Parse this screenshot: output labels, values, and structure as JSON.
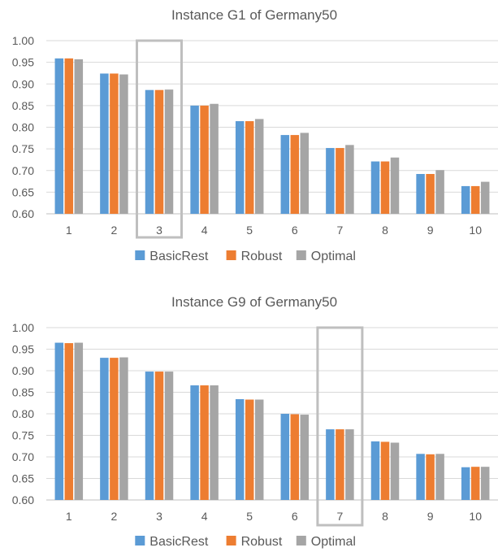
{
  "colors": {
    "BasicRest": "#5b9bd5",
    "Robust": "#ed7d31",
    "Optimal": "#a5a5a5"
  },
  "chart_data": [
    {
      "type": "bar",
      "title": "Instance G1 of Germany50",
      "categories": [
        "1",
        "2",
        "3",
        "4",
        "5",
        "6",
        "7",
        "8",
        "9",
        "10"
      ],
      "ylim": [
        0.6,
        1.0
      ],
      "yticks": [
        "0.60",
        "0.65",
        "0.70",
        "0.75",
        "0.80",
        "0.85",
        "0.90",
        "0.95",
        "1.00"
      ],
      "grid": true,
      "legend_position": "bottom",
      "highlight_category": "3",
      "series": [
        {
          "name": "BasicRest",
          "values": [
            0.959,
            0.924,
            0.886,
            0.85,
            0.814,
            0.782,
            0.752,
            0.721,
            0.692,
            0.664
          ]
        },
        {
          "name": "Robust",
          "values": [
            0.959,
            0.924,
            0.886,
            0.85,
            0.814,
            0.782,
            0.752,
            0.721,
            0.692,
            0.664
          ]
        },
        {
          "name": "Optimal",
          "values": [
            0.957,
            0.922,
            0.887,
            0.854,
            0.819,
            0.787,
            0.759,
            0.73,
            0.701,
            0.674
          ]
        }
      ]
    },
    {
      "type": "bar",
      "title": "Instance G9 of Germany50",
      "categories": [
        "1",
        "2",
        "3",
        "4",
        "5",
        "6",
        "7",
        "8",
        "9",
        "10"
      ],
      "ylim": [
        0.6,
        1.0
      ],
      "yticks": [
        "0.60",
        "0.65",
        "0.70",
        "0.75",
        "0.80",
        "0.85",
        "0.90",
        "0.95",
        "1.00"
      ],
      "grid": true,
      "legend_position": "bottom",
      "highlight_category": "7",
      "series": [
        {
          "name": "BasicRest",
          "values": [
            0.965,
            0.93,
            0.898,
            0.866,
            0.834,
            0.8,
            0.764,
            0.736,
            0.707,
            0.676
          ]
        },
        {
          "name": "Robust",
          "values": [
            0.964,
            0.93,
            0.898,
            0.866,
            0.833,
            0.799,
            0.764,
            0.735,
            0.706,
            0.677
          ]
        },
        {
          "name": "Optimal",
          "values": [
            0.965,
            0.931,
            0.898,
            0.866,
            0.833,
            0.798,
            0.764,
            0.733,
            0.707,
            0.677
          ]
        }
      ]
    }
  ]
}
